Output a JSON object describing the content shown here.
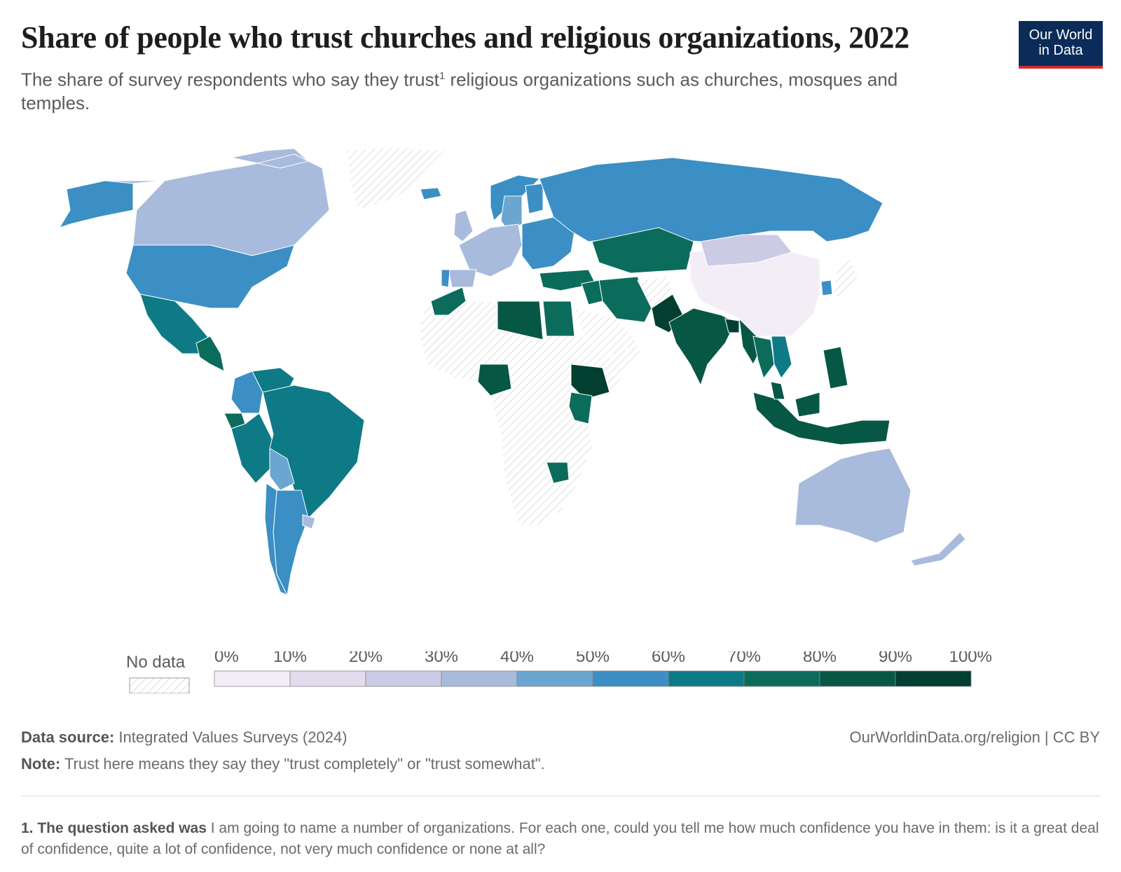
{
  "header": {
    "title": "Share of people who trust churches and religious organizations, 2022",
    "subtitle_part1": "The share of survey respondents who say they trust",
    "subtitle_sup": "1",
    "subtitle_part2": "religious organizations such as churches, mosques and temples."
  },
  "logo": {
    "line1": "Our World",
    "line2": "in Data"
  },
  "legend": {
    "no_data_label": "No data",
    "ticks": [
      "0%",
      "10%",
      "20%",
      "30%",
      "40%",
      "50%",
      "60%",
      "70%",
      "80%",
      "90%",
      "100%"
    ],
    "colors": [
      "#f3eef6",
      "#e3dbee",
      "#cdcae5",
      "#a8bbdc",
      "#6aa6cf",
      "#3b8fc4",
      "#0e7a86",
      "#0b6c5c",
      "#075745",
      "#033f30"
    ]
  },
  "footer": {
    "source_label": "Data source:",
    "source_text": "Integrated Values Surveys (2024)",
    "credit": "OurWorldinData.org/religion | CC BY",
    "note_label": "Note:",
    "note_text": "Trust here means they say they \"trust completely\" or \"trust somewhat\".",
    "footnote_label": "1. The question asked was",
    "footnote_text": "I am going to name a number of organizations. For each one, could you tell me how much confidence you have in them: is it a great deal of confidence, quite a lot of confidence, not very much confidence or none at all?"
  },
  "chart_data": {
    "type": "choropleth",
    "metric": "share_trusting_religious_organizations_percent",
    "year": 2022,
    "color_scale_domain": [
      0,
      100
    ],
    "bins": [
      "0-10",
      "10-20",
      "20-30",
      "30-40",
      "40-50",
      "50-60",
      "60-70",
      "70-80",
      "80-90",
      "90-100"
    ],
    "regions": [
      {
        "name": "Canada",
        "bin": "30-40"
      },
      {
        "name": "United States",
        "bin": "50-60"
      },
      {
        "name": "Mexico",
        "bin": "60-70"
      },
      {
        "name": "Central America",
        "bin": "70-80"
      },
      {
        "name": "Colombia",
        "bin": "50-60"
      },
      {
        "name": "Venezuela",
        "bin": "60-70"
      },
      {
        "name": "Ecuador",
        "bin": "70-80"
      },
      {
        "name": "Peru",
        "bin": "60-70"
      },
      {
        "name": "Brazil",
        "bin": "60-70"
      },
      {
        "name": "Bolivia",
        "bin": "40-50"
      },
      {
        "name": "Argentina",
        "bin": "50-60"
      },
      {
        "name": "Chile",
        "bin": "50-60"
      },
      {
        "name": "Uruguay",
        "bin": "30-40"
      },
      {
        "name": "Greenland",
        "bin": "no data"
      },
      {
        "name": "Iceland",
        "bin": "50-60"
      },
      {
        "name": "Norway",
        "bin": "50-60"
      },
      {
        "name": "Sweden",
        "bin": "40-50"
      },
      {
        "name": "Finland",
        "bin": "50-60"
      },
      {
        "name": "United Kingdom",
        "bin": "30-40"
      },
      {
        "name": "Western Europe",
        "bin": "30-40"
      },
      {
        "name": "Spain",
        "bin": "30-40"
      },
      {
        "name": "Portugal",
        "bin": "50-60"
      },
      {
        "name": "Eastern Europe",
        "bin": "50-60"
      },
      {
        "name": "Russia",
        "bin": "50-60"
      },
      {
        "name": "Turkey",
        "bin": "70-80"
      },
      {
        "name": "Kazakhstan",
        "bin": "70-80"
      },
      {
        "name": "Iran",
        "bin": "70-80"
      },
      {
        "name": "Iraq",
        "bin": "70-80"
      },
      {
        "name": "Saudi Arabia",
        "bin": "no data"
      },
      {
        "name": "Afghanistan",
        "bin": "no data"
      },
      {
        "name": "Pakistan",
        "bin": "90-100"
      },
      {
        "name": "India",
        "bin": "80-90"
      },
      {
        "name": "Bangladesh",
        "bin": "90-100"
      },
      {
        "name": "Myanmar",
        "bin": "80-90"
      },
      {
        "name": "Thailand",
        "bin": "70-80"
      },
      {
        "name": "Vietnam",
        "bin": "60-70"
      },
      {
        "name": "China",
        "bin": "0-10"
      },
      {
        "name": "Mongolia",
        "bin": "20-30"
      },
      {
        "name": "South Korea",
        "bin": "50-60"
      },
      {
        "name": "Japan",
        "bin": "no data"
      },
      {
        "name": "Philippines",
        "bin": "80-90"
      },
      {
        "name": "Indonesia",
        "bin": "80-90"
      },
      {
        "name": "Malaysia",
        "bin": "80-90"
      },
      {
        "name": "Australia",
        "bin": "30-40"
      },
      {
        "name": "New Zealand",
        "bin": "30-40"
      },
      {
        "name": "Morocco",
        "bin": "70-80"
      },
      {
        "name": "Libya",
        "bin": "80-90"
      },
      {
        "name": "Egypt",
        "bin": "70-80"
      },
      {
        "name": "Nigeria",
        "bin": "80-90"
      },
      {
        "name": "Ethiopia",
        "bin": "90-100"
      },
      {
        "name": "Kenya",
        "bin": "70-80"
      },
      {
        "name": "Zimbabwe",
        "bin": "70-80"
      },
      {
        "name": "Rest of Africa",
        "bin": "no data"
      }
    ]
  }
}
